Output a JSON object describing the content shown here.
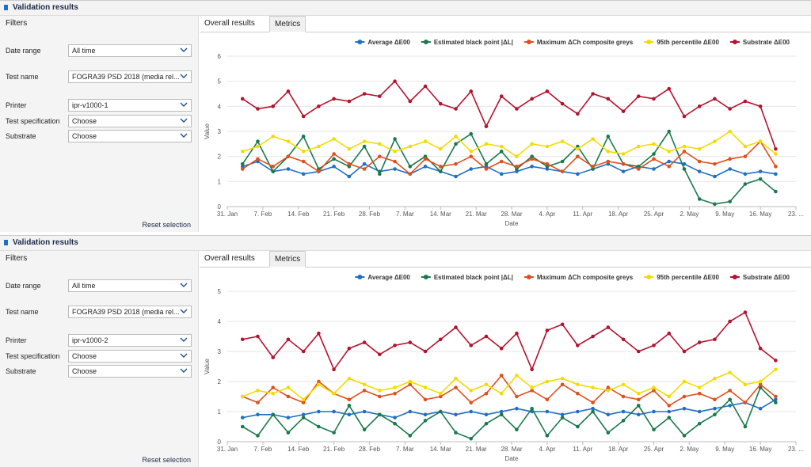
{
  "panels": [
    {
      "header": "Validation results",
      "filters": {
        "title": "Filters",
        "fields": [
          {
            "label": "Date range",
            "value": "All time"
          },
          {
            "label": "Test name",
            "value": "FOGRA39 PSD 2018 (media rel..."
          },
          {
            "label": "Printer",
            "value": "ipr-v1000-1"
          },
          {
            "label": "Test specification",
            "value": "Choose"
          },
          {
            "label": "Substrate",
            "value": "Choose"
          }
        ],
        "reset": "Reset selection"
      },
      "tabs": [
        "Overall results",
        "Metrics"
      ]
    },
    {
      "header": "Validation results",
      "filters": {
        "title": "Filters",
        "fields": [
          {
            "label": "Date range",
            "value": "All time"
          },
          {
            "label": "Test name",
            "value": "FOGRA39 PSD 2018 (media rel..."
          },
          {
            "label": "Printer",
            "value": "ipr-v1000-2"
          },
          {
            "label": "Test specification",
            "value": "Choose"
          },
          {
            "label": "Substrate",
            "value": "Choose"
          }
        ],
        "reset": "Reset selection"
      },
      "tabs": [
        "Overall results",
        "Metrics"
      ]
    }
  ],
  "chart_data": [
    {
      "type": "line",
      "x_label": "Date",
      "y_label": "Value",
      "xlim": [
        "31. Jan",
        "23. May"
      ],
      "xticks": [
        "31. Jan",
        "7. Feb",
        "14. Feb",
        "21. Feb",
        "28. Feb",
        "7. Mar",
        "14. Mar",
        "21. Mar",
        "28. Mar",
        "4. Apr",
        "11. Apr",
        "18. Apr",
        "25. Apr",
        "2. May",
        "9. May",
        "16. May",
        {
          "value": "23. May",
          "label": "23. ..."
        }
      ],
      "ylim": [
        0,
        6
      ],
      "yticks": [
        0,
        1,
        2,
        3,
        4,
        5,
        6
      ],
      "grid": true,
      "x": [
        "3. Feb",
        "6. Feb",
        "9. Feb",
        "12. Feb",
        "15. Feb",
        "18. Feb",
        "21. Feb",
        "24. Feb",
        "27. Feb",
        "2. Mar",
        "5. Mar",
        "8. Mar",
        "11. Mar",
        "14. Mar",
        "17. Mar",
        "20. Mar",
        "23. Mar",
        "26. Mar",
        "29. Mar",
        "1. Apr",
        "4. Apr",
        "7. Apr",
        "10. Apr",
        "13. Apr",
        "16. Apr",
        "19. Apr",
        "22. Apr",
        "25. Apr",
        "28. Apr",
        "1. May",
        "4. May",
        "7. May",
        "10. May",
        "13. May",
        "16. May",
        "19. May"
      ],
      "series": [
        {
          "name": "Average ΔE00",
          "color": "#1f6fc5",
          "values": [
            1.6,
            1.8,
            1.4,
            1.5,
            1.3,
            1.4,
            1.6,
            1.2,
            1.7,
            1.4,
            1.5,
            1.3,
            1.6,
            1.4,
            1.2,
            1.5,
            1.6,
            1.3,
            1.4,
            1.6,
            1.5,
            1.4,
            1.3,
            1.5,
            1.7,
            1.4,
            1.6,
            1.5,
            1.8,
            1.7,
            1.4,
            1.2,
            1.5,
            1.3,
            1.4,
            1.3
          ]
        },
        {
          "name": "Estimated black point |ΔL|",
          "color": "#1a7a4c",
          "values": [
            1.7,
            2.6,
            1.4,
            2.0,
            2.8,
            1.5,
            1.9,
            1.6,
            2.4,
            1.3,
            2.7,
            1.6,
            2.0,
            1.4,
            2.5,
            2.9,
            1.7,
            2.2,
            1.5,
            2.0,
            1.6,
            1.8,
            2.4,
            1.5,
            2.8,
            1.7,
            1.6,
            2.1,
            3.0,
            1.5,
            0.3,
            0.1,
            0.2,
            0.9,
            1.1,
            0.6
          ]
        },
        {
          "name": "Maximum ΔCh composite greys",
          "color": "#e0501e",
          "values": [
            1.5,
            1.9,
            1.6,
            2.0,
            1.8,
            1.4,
            2.1,
            1.7,
            1.5,
            2.0,
            1.8,
            1.3,
            1.9,
            1.6,
            1.7,
            2.0,
            1.5,
            1.8,
            1.6,
            1.9,
            1.7,
            1.4,
            2.0,
            1.6,
            1.8,
            1.7,
            1.5,
            1.9,
            1.6,
            2.2,
            1.8,
            1.7,
            1.9,
            2.0,
            2.6,
            1.6
          ]
        },
        {
          "name": "95th percentile ΔE00",
          "color": "#f2dc00",
          "values": [
            2.2,
            2.4,
            2.8,
            2.6,
            2.2,
            2.4,
            2.7,
            2.3,
            2.6,
            2.5,
            2.2,
            2.4,
            2.6,
            2.3,
            2.8,
            2.2,
            2.5,
            2.4,
            2.0,
            2.5,
            2.4,
            2.6,
            2.3,
            2.7,
            2.2,
            2.1,
            2.4,
            2.5,
            2.2,
            2.4,
            2.3,
            2.6,
            3.0,
            2.4,
            2.6,
            2.1
          ]
        },
        {
          "name": "Substrate ΔE00",
          "color": "#b5122e",
          "values": [
            4.3,
            3.9,
            4.0,
            4.6,
            3.6,
            4.0,
            4.3,
            4.2,
            4.5,
            4.4,
            5.0,
            4.2,
            4.8,
            4.1,
            3.9,
            4.6,
            3.2,
            4.4,
            3.9,
            4.3,
            4.6,
            4.1,
            3.7,
            4.5,
            4.3,
            3.8,
            4.4,
            4.3,
            4.7,
            3.6,
            4.0,
            4.3,
            3.9,
            4.2,
            4.0,
            2.3
          ]
        }
      ]
    },
    {
      "type": "line",
      "x_label": "Date",
      "y_label": "Value",
      "xlim": [
        "31. Jan",
        "23. May"
      ],
      "xticks": [
        "31. Jan",
        "7. Feb",
        "14. Feb",
        "21. Feb",
        "28. Feb",
        "7. Mar",
        "14. Mar",
        "21. Mar",
        "28. Mar",
        "4. Apr",
        "11. Apr",
        "18. Apr",
        "25. Apr",
        "2. May",
        "9. May",
        "16. May",
        {
          "value": "23. May",
          "label": "23. ..."
        }
      ],
      "ylim": [
        0,
        5
      ],
      "yticks": [
        0,
        1,
        2,
        3,
        4,
        5
      ],
      "grid": true,
      "x": [
        "3. Feb",
        "6. Feb",
        "9. Feb",
        "12. Feb",
        "15. Feb",
        "18. Feb",
        "21. Feb",
        "24. Feb",
        "27. Feb",
        "2. Mar",
        "5. Mar",
        "8. Mar",
        "11. Mar",
        "14. Mar",
        "17. Mar",
        "20. Mar",
        "23. Mar",
        "26. Mar",
        "29. Mar",
        "1. Apr",
        "4. Apr",
        "7. Apr",
        "10. Apr",
        "13. Apr",
        "16. Apr",
        "19. Apr",
        "22. Apr",
        "25. Apr",
        "28. Apr",
        "1. May",
        "4. May",
        "7. May",
        "10. May",
        "13. May",
        "16. May",
        "19. May"
      ],
      "series": [
        {
          "name": "Average ΔE00",
          "color": "#1f6fc5",
          "values": [
            0.8,
            0.9,
            0.9,
            0.8,
            0.9,
            1.0,
            1.0,
            0.9,
            1.0,
            0.9,
            0.8,
            1.0,
            0.9,
            1.0,
            0.9,
            1.0,
            0.9,
            1.0,
            1.1,
            1.0,
            1.0,
            0.9,
            1.0,
            1.1,
            0.9,
            1.0,
            0.9,
            1.0,
            1.0,
            1.1,
            1.0,
            1.1,
            1.2,
            1.3,
            1.1,
            1.4
          ]
        },
        {
          "name": "Estimated black point |ΔL|",
          "color": "#1a7a4c",
          "values": [
            0.5,
            0.2,
            0.9,
            0.3,
            0.8,
            0.5,
            0.3,
            1.2,
            0.4,
            0.9,
            0.6,
            0.2,
            0.7,
            1.0,
            0.3,
            0.1,
            0.6,
            0.9,
            0.4,
            1.1,
            0.2,
            0.8,
            0.5,
            1.0,
            0.3,
            0.7,
            1.2,
            0.4,
            0.8,
            0.2,
            0.6,
            0.9,
            1.4,
            0.5,
            1.8,
            1.3
          ]
        },
        {
          "name": "Maximum ΔCh composite greys",
          "color": "#e0501e",
          "values": [
            1.5,
            1.3,
            1.8,
            1.5,
            1.3,
            2.0,
            1.6,
            1.4,
            1.7,
            1.5,
            1.6,
            1.9,
            1.4,
            1.5,
            1.8,
            1.3,
            1.6,
            2.2,
            1.5,
            1.7,
            1.4,
            1.9,
            1.6,
            1.3,
            1.8,
            1.5,
            1.4,
            1.7,
            1.2,
            1.5,
            1.6,
            1.4,
            1.7,
            1.3,
            1.9,
            1.5
          ]
        },
        {
          "name": "95th percentile ΔE00",
          "color": "#f2dc00",
          "values": [
            1.5,
            1.7,
            1.6,
            1.8,
            1.4,
            1.9,
            1.6,
            2.1,
            1.9,
            1.7,
            1.8,
            2.0,
            1.8,
            1.6,
            2.1,
            1.7,
            1.9,
            1.6,
            2.2,
            1.8,
            2.0,
            2.1,
            1.9,
            1.8,
            1.7,
            1.9,
            1.6,
            1.8,
            1.5,
            2.0,
            1.8,
            2.1,
            2.3,
            1.9,
            2.0,
            2.4
          ]
        },
        {
          "name": "Substrate ΔE00",
          "color": "#b5122e",
          "values": [
            3.4,
            3.5,
            2.8,
            3.4,
            3.0,
            3.6,
            2.4,
            3.1,
            3.3,
            2.9,
            3.2,
            3.3,
            3.0,
            3.4,
            3.8,
            3.2,
            3.5,
            3.1,
            3.6,
            2.4,
            3.7,
            3.9,
            3.2,
            3.5,
            3.8,
            3.4,
            3.0,
            3.2,
            3.6,
            3.0,
            3.3,
            3.4,
            4.0,
            4.3,
            3.1,
            2.7
          ]
        }
      ]
    }
  ]
}
